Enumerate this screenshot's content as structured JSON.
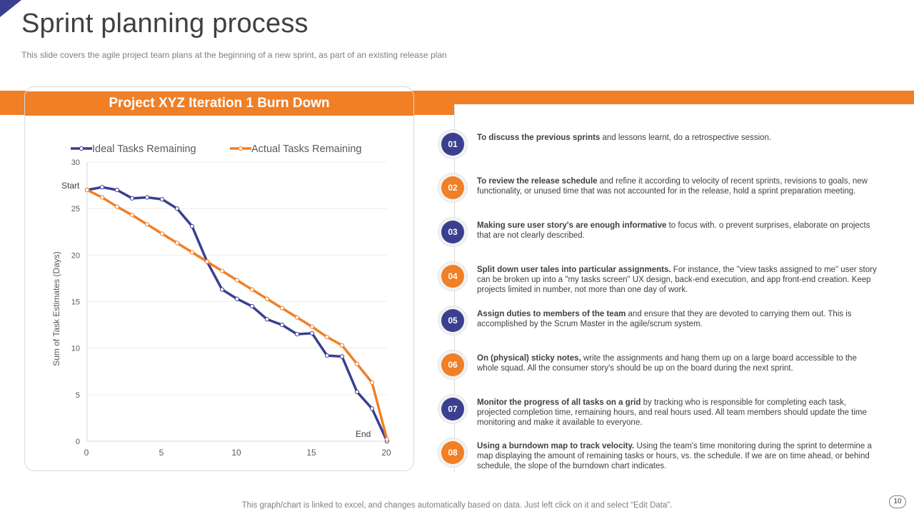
{
  "slide": {
    "title": "Sprint planning process",
    "subtitle": "This slide covers the agile project team plans at the  beginning of a new sprint, as part of an existing release plan",
    "footer_note": "This graph/chart is linked to excel,  and changes automatically based on data. Just left click on it and select “Edit Data”.",
    "page_number": "10"
  },
  "colors": {
    "navy": "#3b3f8f",
    "orange": "#f07f26",
    "text": "#404040",
    "muted": "#7f7f7f"
  },
  "chart_data": {
    "type": "line",
    "title": "Project XYZ Iteration 1 Burn Down",
    "xlabel": "",
    "ylabel": "Sum of Task  Estimates (Days)",
    "xlim": [
      0,
      20
    ],
    "ylim": [
      0,
      30
    ],
    "x_ticks": [
      "0",
      "5",
      "10",
      "15",
      "20"
    ],
    "y_ticks": [
      "0",
      "5",
      "10",
      "15",
      "20",
      "25",
      "30"
    ],
    "x_tick_values": [
      0,
      5,
      10,
      15,
      20
    ],
    "y_tick_values": [
      0,
      5,
      10,
      15,
      20,
      25,
      30
    ],
    "grid": true,
    "legend": "top",
    "annotations": [
      {
        "text": "Start",
        "x": 0,
        "y": 27
      },
      {
        "text": "End",
        "x": 20,
        "y": 0
      }
    ],
    "x": [
      0,
      1,
      2,
      3,
      4,
      5,
      6,
      7,
      8,
      9,
      10,
      11,
      12,
      13,
      14,
      15,
      16,
      17,
      18,
      19,
      20
    ],
    "series": [
      {
        "name": "Ideal Tasks Remaining",
        "color": "#3b3f8f",
        "values": [
          27,
          27.3,
          27,
          26.1,
          26.2,
          26,
          25,
          23.1,
          19.3,
          16.3,
          15.3,
          14.5,
          13.1,
          12.5,
          11.5,
          11.6,
          9.2,
          9.1,
          5.3,
          3.5,
          0
        ]
      },
      {
        "name": "Actual Tasks Remaining",
        "color": "#f07f26",
        "values": [
          27,
          26.2,
          25.2,
          24.3,
          23.3,
          22.3,
          21.3,
          20.3,
          19.3,
          18.3,
          17.3,
          16.3,
          15.3,
          14.3,
          13.3,
          12.3,
          11.2,
          10.3,
          8.3,
          6.3,
          0.2
        ]
      }
    ]
  },
  "steps": [
    {
      "num": "01",
      "bold": "To discuss the previous  sprints",
      "rest": " and lessons learnt, do a retrospective session."
    },
    {
      "num": "02",
      "bold": "To review the release schedule",
      "rest": " and refine it according to velocity of recent sprints, revisions to goals, new functionality, or unused time that was not accounted for in the release, hold a sprint preparation meeting."
    },
    {
      "num": "03",
      "bold": "Making  sure user story's are enough  informative",
      "rest": " to focus with. o prevent surprises, elaborate on projects that are not clearly described."
    },
    {
      "num": "04",
      "bold": "Split down user tales into particular assignments.",
      "rest": " For instance, the \"view tasks assigned to me\" user story can be broken up into a \"my tasks screen\" UX design, back-end execution, and app front-end creation. Keep projects limited in number, not more than one day of work."
    },
    {
      "num": "05",
      "bold": "Assign duties to members of the team",
      "rest": " and ensure that they are devoted to carrying them out. This is accomplished by the Scrum Master in the agile/scrum system."
    },
    {
      "num": "06",
      "bold": "On (physical) sticky notes,",
      "rest": " write the assignments and hang them up on a large board accessible to the whole squad. All the consumer story's should be up on the board during the next sprint."
    },
    {
      "num": "07",
      "bold": "Monitor the progress of all tasks on a grid",
      "rest": " by tracking who is responsible for completing each task, projected completion time, remaining hours, and real hours used. All team members should update the time monitoring and make it available to everyone."
    },
    {
      "num": "08",
      "bold": "Using  a burndown map to track velocity.",
      "rest": "  Using the team's time monitoring during the sprint to determine a map displaying the amount of remaining tasks or hours, vs. the schedule. If we are on time ahead, or behind schedule, the slope of the burndown chart indicates."
    }
  ]
}
